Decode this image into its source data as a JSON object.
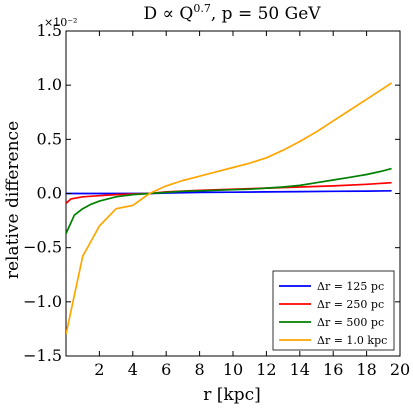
{
  "chart_data": {
    "type": "line",
    "title": "D ∝ Q^0.7, p = 50 GeV",
    "title_parts": {
      "main": "D ∝ Q",
      "superscript": "0.7",
      "suffix": ", p = 50 GeV"
    },
    "xlabel": "r [kpc]",
    "ylabel": "relative difference",
    "y_scale_multiplier": "×10⁻²",
    "xlim": [
      0,
      20
    ],
    "ylim": [
      -1.5,
      1.5
    ],
    "x_ticks": [
      2,
      4,
      6,
      8,
      10,
      12,
      14,
      16,
      18,
      20
    ],
    "x_tick_labels": [
      "2",
      "4",
      "6",
      "8",
      "10",
      "12",
      "14",
      "16",
      "18",
      "20"
    ],
    "y_ticks": [
      -1.5,
      -1.0,
      -0.5,
      0.0,
      0.5,
      1.0,
      1.5
    ],
    "y_tick_labels": [
      "−1.5",
      "−1.0",
      "−0.5",
      "0.0",
      "0.5",
      "1.0",
      "1.5"
    ],
    "grid": false,
    "legend_position": "lower-right",
    "series": [
      {
        "name": "Δr = 125 pc",
        "color": "#0000ff",
        "x": [
          0.0,
          1.0,
          2.0,
          3.0,
          4.0,
          5.0,
          6.0,
          8.0,
          10.0,
          12.0,
          14.0,
          16.0,
          18.0,
          19.5
        ],
        "y": [
          0.0,
          0.0,
          0.0,
          0.0,
          0.0,
          0.0,
          0.005,
          0.01,
          0.012,
          0.015,
          0.018,
          0.02,
          0.022,
          0.025
        ]
      },
      {
        "name": "Δr = 250 pc",
        "color": "#ff0000",
        "x": [
          0.0,
          0.3,
          1.0,
          2.0,
          3.0,
          4.0,
          5.0,
          6.0,
          8.0,
          10.0,
          12.0,
          14.0,
          16.0,
          18.0,
          19.5
        ],
        "y": [
          -0.09,
          -0.05,
          -0.03,
          -0.02,
          -0.01,
          -0.005,
          0.0,
          0.015,
          0.03,
          0.04,
          0.05,
          0.06,
          0.07,
          0.085,
          0.1
        ]
      },
      {
        "name": "Δr = 500 pc",
        "color": "#008000",
        "x": [
          0.0,
          0.5,
          1.0,
          1.5,
          2.0,
          2.5,
          3.0,
          3.5,
          4.0,
          5.0,
          6.0,
          7.0,
          8.0,
          9.0,
          10.0,
          11.0,
          12.0,
          13.0,
          14.0,
          15.0,
          16.0,
          17.0,
          18.0,
          19.0,
          19.5
        ],
        "y": [
          -0.37,
          -0.2,
          -0.14,
          -0.1,
          -0.07,
          -0.05,
          -0.03,
          -0.02,
          -0.01,
          0.0,
          0.01,
          0.02,
          0.025,
          0.03,
          0.035,
          0.04,
          0.05,
          0.06,
          0.075,
          0.1,
          0.125,
          0.15,
          0.175,
          0.21,
          0.23
        ]
      },
      {
        "name": "Δr = 1.0 kpc",
        "color": "#ffa500",
        "x": [
          0.0,
          1.0,
          2.0,
          3.0,
          4.0,
          5.0,
          6.0,
          7.0,
          8.0,
          9.0,
          10.0,
          11.0,
          12.0,
          13.0,
          14.0,
          15.0,
          16.0,
          17.0,
          18.0,
          19.0,
          19.5
        ],
        "y": [
          -1.3,
          -0.58,
          -0.3,
          -0.14,
          -0.11,
          0.0,
          0.07,
          0.12,
          0.16,
          0.2,
          0.24,
          0.28,
          0.33,
          0.4,
          0.48,
          0.57,
          0.67,
          0.77,
          0.87,
          0.97,
          1.02
        ]
      }
    ]
  }
}
